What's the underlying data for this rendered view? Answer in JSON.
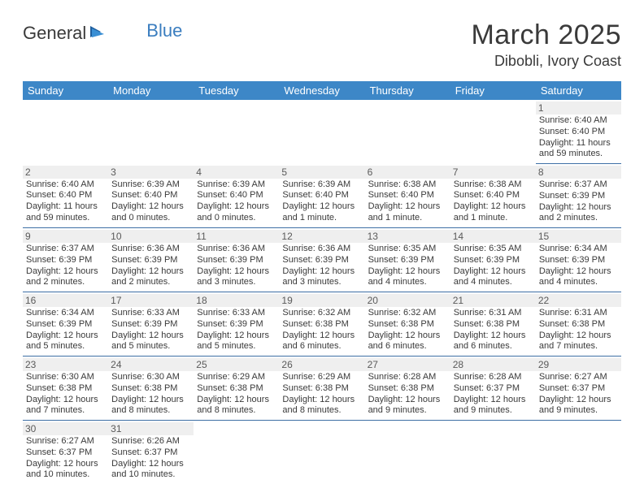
{
  "brand": {
    "part1": "General",
    "part2": "Blue"
  },
  "title": "March 2025",
  "location": "Dibobli, Ivory Coast",
  "colors": {
    "header_bg": "#3d87c7",
    "header_fg": "#ffffff",
    "row_border": "#3d6fa5",
    "daynum_bg": "#efefef",
    "text": "#3a3a3a",
    "brand_blue": "#3a7dbf"
  },
  "fonts": {
    "title_size": 34,
    "location_size": 18,
    "header_size": 13,
    "daynum_size": 12,
    "body_size": 11
  },
  "dayHeaders": [
    "Sunday",
    "Monday",
    "Tuesday",
    "Wednesday",
    "Thursday",
    "Friday",
    "Saturday"
  ],
  "weeks": [
    [
      null,
      null,
      null,
      null,
      null,
      null,
      {
        "n": "1",
        "sr": "Sunrise: 6:40 AM",
        "ss": "Sunset: 6:40 PM",
        "dl": "Daylight: 11 hours and 59 minutes."
      }
    ],
    [
      {
        "n": "2",
        "sr": "Sunrise: 6:40 AM",
        "ss": "Sunset: 6:40 PM",
        "dl": "Daylight: 11 hours and 59 minutes."
      },
      {
        "n": "3",
        "sr": "Sunrise: 6:39 AM",
        "ss": "Sunset: 6:40 PM",
        "dl": "Daylight: 12 hours and 0 minutes."
      },
      {
        "n": "4",
        "sr": "Sunrise: 6:39 AM",
        "ss": "Sunset: 6:40 PM",
        "dl": "Daylight: 12 hours and 0 minutes."
      },
      {
        "n": "5",
        "sr": "Sunrise: 6:39 AM",
        "ss": "Sunset: 6:40 PM",
        "dl": "Daylight: 12 hours and 1 minute."
      },
      {
        "n": "6",
        "sr": "Sunrise: 6:38 AM",
        "ss": "Sunset: 6:40 PM",
        "dl": "Daylight: 12 hours and 1 minute."
      },
      {
        "n": "7",
        "sr": "Sunrise: 6:38 AM",
        "ss": "Sunset: 6:40 PM",
        "dl": "Daylight: 12 hours and 1 minute."
      },
      {
        "n": "8",
        "sr": "Sunrise: 6:37 AM",
        "ss": "Sunset: 6:39 PM",
        "dl": "Daylight: 12 hours and 2 minutes."
      }
    ],
    [
      {
        "n": "9",
        "sr": "Sunrise: 6:37 AM",
        "ss": "Sunset: 6:39 PM",
        "dl": "Daylight: 12 hours and 2 minutes."
      },
      {
        "n": "10",
        "sr": "Sunrise: 6:36 AM",
        "ss": "Sunset: 6:39 PM",
        "dl": "Daylight: 12 hours and 2 minutes."
      },
      {
        "n": "11",
        "sr": "Sunrise: 6:36 AM",
        "ss": "Sunset: 6:39 PM",
        "dl": "Daylight: 12 hours and 3 minutes."
      },
      {
        "n": "12",
        "sr": "Sunrise: 6:36 AM",
        "ss": "Sunset: 6:39 PM",
        "dl": "Daylight: 12 hours and 3 minutes."
      },
      {
        "n": "13",
        "sr": "Sunrise: 6:35 AM",
        "ss": "Sunset: 6:39 PM",
        "dl": "Daylight: 12 hours and 4 minutes."
      },
      {
        "n": "14",
        "sr": "Sunrise: 6:35 AM",
        "ss": "Sunset: 6:39 PM",
        "dl": "Daylight: 12 hours and 4 minutes."
      },
      {
        "n": "15",
        "sr": "Sunrise: 6:34 AM",
        "ss": "Sunset: 6:39 PM",
        "dl": "Daylight: 12 hours and 4 minutes."
      }
    ],
    [
      {
        "n": "16",
        "sr": "Sunrise: 6:34 AM",
        "ss": "Sunset: 6:39 PM",
        "dl": "Daylight: 12 hours and 5 minutes."
      },
      {
        "n": "17",
        "sr": "Sunrise: 6:33 AM",
        "ss": "Sunset: 6:39 PM",
        "dl": "Daylight: 12 hours and 5 minutes."
      },
      {
        "n": "18",
        "sr": "Sunrise: 6:33 AM",
        "ss": "Sunset: 6:39 PM",
        "dl": "Daylight: 12 hours and 5 minutes."
      },
      {
        "n": "19",
        "sr": "Sunrise: 6:32 AM",
        "ss": "Sunset: 6:38 PM",
        "dl": "Daylight: 12 hours and 6 minutes."
      },
      {
        "n": "20",
        "sr": "Sunrise: 6:32 AM",
        "ss": "Sunset: 6:38 PM",
        "dl": "Daylight: 12 hours and 6 minutes."
      },
      {
        "n": "21",
        "sr": "Sunrise: 6:31 AM",
        "ss": "Sunset: 6:38 PM",
        "dl": "Daylight: 12 hours and 6 minutes."
      },
      {
        "n": "22",
        "sr": "Sunrise: 6:31 AM",
        "ss": "Sunset: 6:38 PM",
        "dl": "Daylight: 12 hours and 7 minutes."
      }
    ],
    [
      {
        "n": "23",
        "sr": "Sunrise: 6:30 AM",
        "ss": "Sunset: 6:38 PM",
        "dl": "Daylight: 12 hours and 7 minutes."
      },
      {
        "n": "24",
        "sr": "Sunrise: 6:30 AM",
        "ss": "Sunset: 6:38 PM",
        "dl": "Daylight: 12 hours and 8 minutes."
      },
      {
        "n": "25",
        "sr": "Sunrise: 6:29 AM",
        "ss": "Sunset: 6:38 PM",
        "dl": "Daylight: 12 hours and 8 minutes."
      },
      {
        "n": "26",
        "sr": "Sunrise: 6:29 AM",
        "ss": "Sunset: 6:38 PM",
        "dl": "Daylight: 12 hours and 8 minutes."
      },
      {
        "n": "27",
        "sr": "Sunrise: 6:28 AM",
        "ss": "Sunset: 6:38 PM",
        "dl": "Daylight: 12 hours and 9 minutes."
      },
      {
        "n": "28",
        "sr": "Sunrise: 6:28 AM",
        "ss": "Sunset: 6:37 PM",
        "dl": "Daylight: 12 hours and 9 minutes."
      },
      {
        "n": "29",
        "sr": "Sunrise: 6:27 AM",
        "ss": "Sunset: 6:37 PM",
        "dl": "Daylight: 12 hours and 9 minutes."
      }
    ],
    [
      {
        "n": "30",
        "sr": "Sunrise: 6:27 AM",
        "ss": "Sunset: 6:37 PM",
        "dl": "Daylight: 12 hours and 10 minutes."
      },
      {
        "n": "31",
        "sr": "Sunrise: 6:26 AM",
        "ss": "Sunset: 6:37 PM",
        "dl": "Daylight: 12 hours and 10 minutes."
      },
      null,
      null,
      null,
      null,
      null
    ]
  ]
}
